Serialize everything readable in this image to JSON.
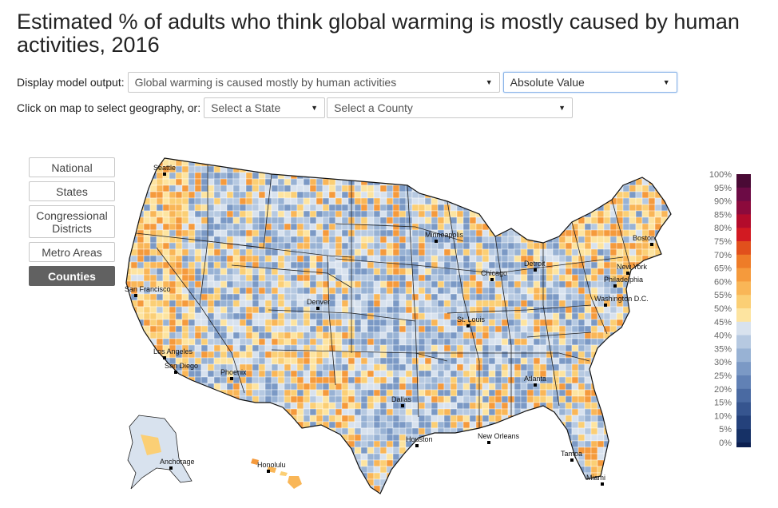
{
  "title": "Estimated % of adults who think global warming is mostly caused by human activities, 2016",
  "controls": {
    "display_label": "Display model output:",
    "model_output": "Global warming is caused mostly by human activities",
    "value_type": "Absolute Value",
    "select_label": "Click on map to select geography, or:",
    "state_select": "Select a State",
    "county_select": "Select a County"
  },
  "geo_buttons": [
    {
      "label": "National",
      "active": false
    },
    {
      "label": "States",
      "active": false
    },
    {
      "label": "Congressional Districts",
      "active": false
    },
    {
      "label": "Metro Areas",
      "active": false
    },
    {
      "label": "Counties",
      "active": true
    }
  ],
  "cities": [
    {
      "name": "Seattle"
    },
    {
      "name": "San Francisco"
    },
    {
      "name": "Los Angeles"
    },
    {
      "name": "San Diego"
    },
    {
      "name": "Phoenix"
    },
    {
      "name": "Denver"
    },
    {
      "name": "Minneapolis"
    },
    {
      "name": "Chicago"
    },
    {
      "name": "Detroit"
    },
    {
      "name": "Boston"
    },
    {
      "name": "New York"
    },
    {
      "name": "Philadelphia"
    },
    {
      "name": "Washington D.C."
    },
    {
      "name": "St. Louis"
    },
    {
      "name": "Atlanta"
    },
    {
      "name": "Dallas"
    },
    {
      "name": "Houston"
    },
    {
      "name": "New Orleans"
    },
    {
      "name": "Tampa"
    },
    {
      "name": "Miami"
    },
    {
      "name": "Anchorage"
    },
    {
      "name": "Honolulu"
    }
  ],
  "legend": {
    "labels": [
      "100%",
      "95%",
      "90%",
      "85%",
      "80%",
      "75%",
      "70%",
      "65%",
      "60%",
      "55%",
      "50%",
      "45%",
      "40%",
      "35%",
      "30%",
      "25%",
      "20%",
      "15%",
      "10%",
      "5%",
      "0%"
    ],
    "colors": [
      "#4a0a35",
      "#6c0b45",
      "#8c0a3c",
      "#b30b2b",
      "#d21a22",
      "#e1501c",
      "#ee7c28",
      "#f59a3c",
      "#f9b657",
      "#fbcf75",
      "#fde4a0",
      "#d8e2ee",
      "#b6c9e1",
      "#98b2d4",
      "#7b99c5",
      "#6181b5",
      "#4a6aa2",
      "#36558f",
      "#24417b",
      "#163166",
      "#0b1f50"
    ]
  },
  "palette": {
    "warm": [
      "#fde4a0",
      "#fbcf75",
      "#f9b657",
      "#f59a3c"
    ],
    "cool": [
      "#d8e2ee",
      "#b6c9e1",
      "#98b2d4",
      "#7b99c5"
    ]
  }
}
